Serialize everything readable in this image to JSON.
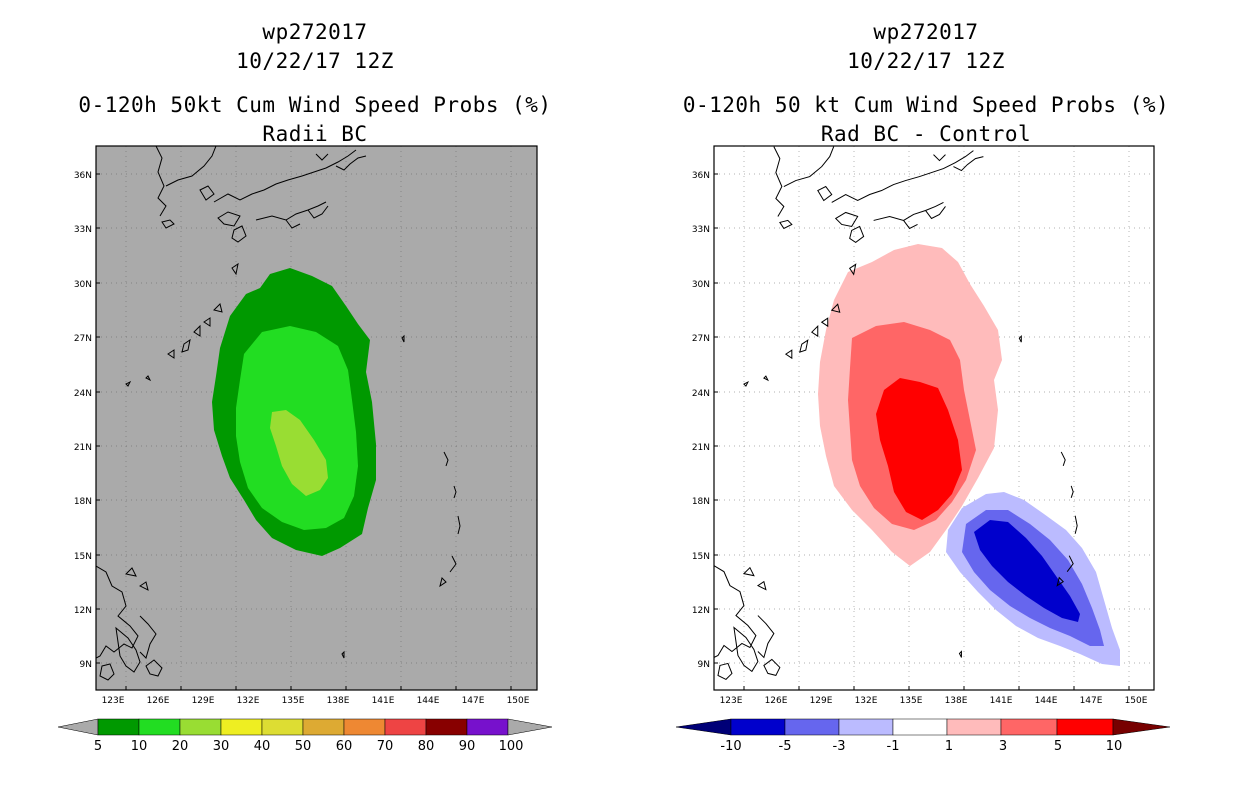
{
  "left": {
    "title_lines": [
      "wp272017",
      "10/22/17 12Z",
      "0-120h 50kt Cum Wind Speed Probs (%)",
      "Radii BC"
    ],
    "background_color": "#aaaaaa",
    "lat_labels": [
      "36N",
      "33N",
      "30N",
      "27N",
      "24N",
      "21N",
      "18N",
      "15N",
      "12N",
      "9N"
    ],
    "lon_labels": [
      "123E",
      "126E",
      "129E",
      "132E",
      "135E",
      "138E",
      "141E",
      "144E",
      "147E",
      "150E"
    ],
    "colorbar": {
      "colors": [
        "#009900",
        "#22dd22",
        "#99dd33",
        "#eeee22",
        "#dddd33",
        "#ddaa33",
        "#ee8833",
        "#ee4444",
        "#880000",
        "#7711cc"
      ],
      "end_colors": [
        "#aaaaaa",
        "#aaaaaa"
      ],
      "labels": [
        "5",
        "10",
        "20",
        "30",
        "40",
        "50",
        "60",
        "70",
        "80",
        "90",
        "100"
      ]
    },
    "contour_colors": [
      "#009900",
      "#22dd22",
      "#99dd33"
    ]
  },
  "right": {
    "title_lines": [
      "wp272017",
      "10/22/17 12Z",
      "0-120h 50 kt Cum Wind Speed Probs (%)",
      "Rad BC - Control"
    ],
    "background_color": "#ffffff",
    "lat_labels": [
      "36N",
      "33N",
      "30N",
      "27N",
      "24N",
      "21N",
      "18N",
      "15N",
      "12N",
      "9N"
    ],
    "lon_labels": [
      "123E",
      "126E",
      "129E",
      "132E",
      "135E",
      "138E",
      "141E",
      "144E",
      "147E",
      "150E"
    ],
    "colorbar": {
      "colors": [
        "#0000cc",
        "#6666ee",
        "#bbbbff",
        "#ffffff",
        "#ffbbbb",
        "#ff6666",
        "#ff0000"
      ],
      "end_colors": [
        "#000077",
        "#770000"
      ],
      "labels": [
        "-10",
        "-5",
        "-3",
        "-1",
        "1",
        "3",
        "5",
        "10"
      ]
    },
    "positive_colors": [
      "#ffbbbb",
      "#ff6666",
      "#ff0000"
    ],
    "negative_colors": [
      "#bbbbff",
      "#6666ee",
      "#0000cc"
    ]
  }
}
